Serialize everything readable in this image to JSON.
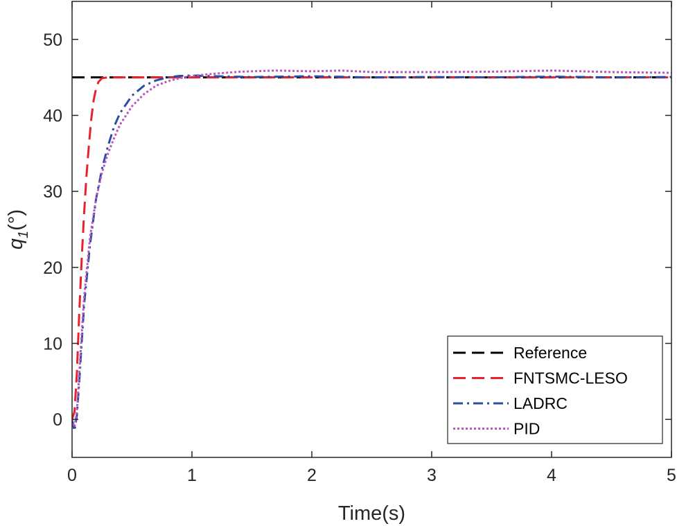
{
  "chart_data": {
    "type": "line",
    "xlabel": "Time(s)",
    "ylabel_main": "q",
    "ylabel_sub": "1",
    "ylabel_unit": "(°)",
    "xlim": [
      0,
      5
    ],
    "ylim": [
      -5,
      55
    ],
    "xticks": [
      0,
      1,
      2,
      3,
      4,
      5
    ],
    "yticks": [
      0,
      10,
      20,
      30,
      40,
      50
    ],
    "grid": false,
    "legend_position": "bottom-right",
    "series": [
      {
        "name": "Reference",
        "color": "#000000",
        "style": "dashed",
        "x": [
          0,
          5
        ],
        "y": [
          45,
          45
        ]
      },
      {
        "name": "FNTSMC-LESO",
        "color": "#e8212a",
        "style": "dashed",
        "x": [
          0,
          0.02,
          0.04,
          0.06,
          0.08,
          0.1,
          0.12,
          0.14,
          0.16,
          0.18,
          0.2,
          0.22,
          0.25,
          0.3,
          0.35,
          0.4,
          0.5,
          1.0,
          2.0,
          3.0,
          4.0,
          5.0
        ],
        "y": [
          0,
          1,
          6,
          14,
          21,
          27,
          32,
          36,
          39.5,
          42,
          43.5,
          44.4,
          44.9,
          45,
          45,
          45,
          45,
          45,
          45,
          45,
          45,
          45
        ]
      },
      {
        "name": "LADRC",
        "color": "#2a4da2",
        "style": "dashdot",
        "x": [
          0,
          0.02,
          0.04,
          0.06,
          0.08,
          0.1,
          0.15,
          0.2,
          0.25,
          0.3,
          0.35,
          0.4,
          0.5,
          0.6,
          0.7,
          0.8,
          0.9,
          1.0,
          1.2,
          1.5,
          2.0,
          2.5,
          3.0,
          3.5,
          4.0,
          4.5,
          5.0
        ],
        "y": [
          0,
          -1.5,
          0.5,
          5,
          10,
          15,
          23,
          29,
          33,
          36,
          38.5,
          40.3,
          42.6,
          43.9,
          44.6,
          45.0,
          45.2,
          45.25,
          45.15,
          45.05,
          45.15,
          45.0,
          45.05,
          45.0,
          45.1,
          45.0,
          45.05
        ]
      },
      {
        "name": "PID",
        "color": "#bb55c0",
        "style": "dotted",
        "x": [
          0,
          0.02,
          0.04,
          0.06,
          0.08,
          0.1,
          0.15,
          0.2,
          0.25,
          0.3,
          0.35,
          0.4,
          0.5,
          0.6,
          0.7,
          0.8,
          0.9,
          1.0,
          1.2,
          1.4,
          1.7,
          2.0,
          2.25,
          2.5,
          3.0,
          3.5,
          4.0,
          4.5,
          5.0
        ],
        "y": [
          0,
          -1,
          1,
          6,
          11,
          16,
          24,
          29,
          32.5,
          35,
          37,
          38.8,
          41.2,
          42.8,
          43.9,
          44.5,
          44.9,
          45.2,
          45.5,
          45.75,
          45.9,
          45.8,
          45.9,
          45.7,
          45.7,
          45.75,
          45.9,
          45.7,
          45.6
        ]
      }
    ]
  }
}
